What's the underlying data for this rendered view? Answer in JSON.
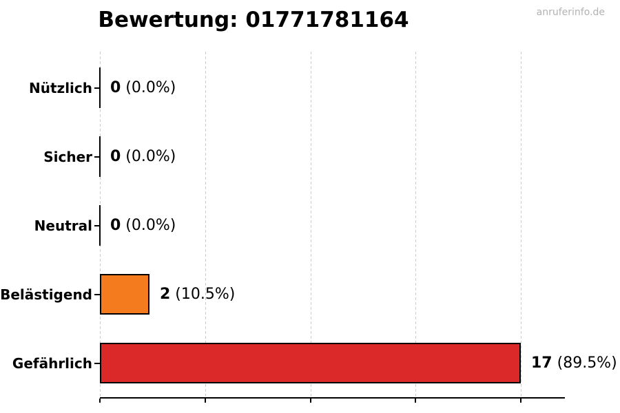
{
  "page": {
    "title": "Bewertung: 01771781164",
    "watermark": "anruferinfo.de"
  },
  "chart_data": {
    "type": "bar",
    "orientation": "horizontal",
    "title": "Bewertung: 01771781164",
    "categories": [
      "Nützlich",
      "Sicher",
      "Neutral",
      "Belästigend",
      "Gefährlich"
    ],
    "values": [
      0,
      0,
      0,
      2,
      17
    ],
    "percent_labels": [
      "(0.0%)",
      "(0.0%)",
      "(0.0%)",
      "(10.5%)",
      "(89.5%)"
    ],
    "value_labels": [
      "0 (0.0%)",
      "0 (0.0%)",
      "0 (0.0%)",
      "2 (10.5%)",
      "17 (89.5%)"
    ],
    "bar_fill_colors": [
      null,
      null,
      null,
      "#f57c1e",
      "#db2828"
    ],
    "bar_edge_color": "#000000",
    "xlim": [
      0,
      17
    ],
    "x_tick_count": 5,
    "x_tick_labels_visible": false,
    "grid": "vertical-dashed",
    "grid_color": "#cccccc",
    "legend": "none",
    "background_color": "#ffffff"
  }
}
